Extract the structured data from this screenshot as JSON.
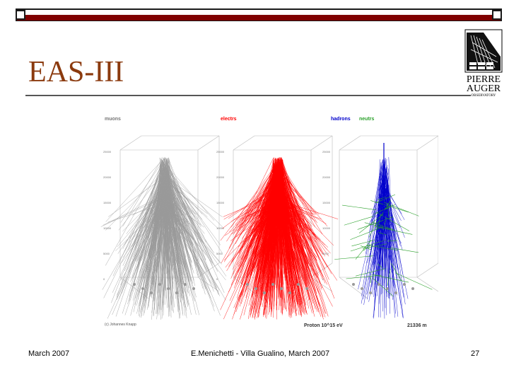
{
  "slide": {
    "title": "EAS-III",
    "footer_left": "March 2007",
    "footer_center": "E.Menichetti - Villa Gualino, March 2007",
    "footer_right": "27"
  },
  "logo": {
    "line1": "PIERRE",
    "line2": "AUGER",
    "line3": "OBSERVATORY"
  },
  "figure": {
    "panel_labels": [
      "muons",
      "electrs",
      "hadrons",
      "neutrs"
    ],
    "z_ticks": [
      "25000",
      "20000",
      "15000",
      "10000",
      "5000",
      "0"
    ],
    "caption_left": "(c) Johannes Knapp",
    "caption_center": "Proton 10^15 eV",
    "caption_right": "21336 m"
  },
  "colors": {
    "accent_bar": "#800000",
    "title": "#8b3a0e",
    "muons": "#9a9a9a",
    "electrs": "#ff0000",
    "hadrons": "#0000cc",
    "neutrs": "#2aa02a"
  }
}
